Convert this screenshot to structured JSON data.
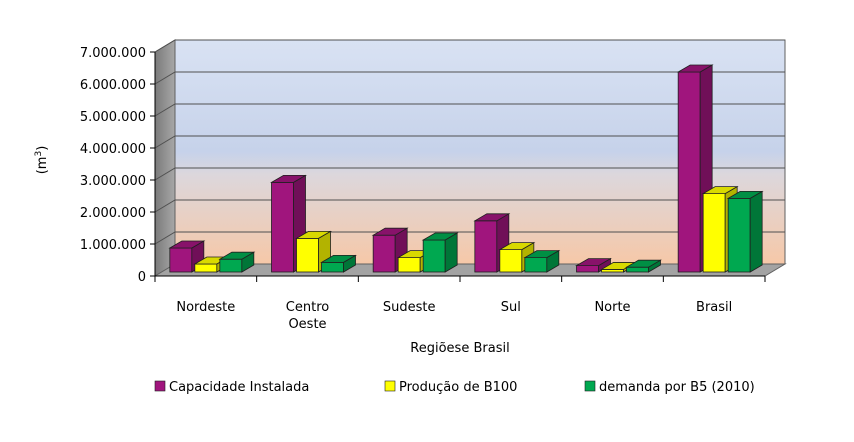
{
  "chart_data": {
    "type": "bar",
    "style": "3d-clustered-column",
    "categories": [
      "Nordeste",
      "Centro Oeste",
      "Sudeste",
      "Sul",
      "Norte",
      "Brasil"
    ],
    "category_lines": [
      [
        "Nordeste"
      ],
      [
        "Centro",
        "Oeste"
      ],
      [
        "Sudeste"
      ],
      [
        "Sul"
      ],
      [
        "Norte"
      ],
      [
        "Brasil"
      ]
    ],
    "series": [
      {
        "name": "Capacidade Instalada",
        "color": "#a0157d",
        "values": [
          750000,
          2800000,
          1150000,
          1600000,
          200000,
          6250000
        ]
      },
      {
        "name": "Produção de B100",
        "color": "#ffff00",
        "values": [
          250000,
          1050000,
          450000,
          700000,
          80000,
          2450000
        ]
      },
      {
        "name": "demanda por B5 (2010)",
        "color": "#00a850",
        "values": [
          400000,
          300000,
          1000000,
          450000,
          150000,
          2300000
        ]
      }
    ],
    "ylabel": "(m³)",
    "ylabel_parts": {
      "base": "(m",
      "sup": "3",
      "close": ")"
    },
    "xlabel": "Regiõese Brasil",
    "ylim": [
      0,
      7000000
    ],
    "yticks": [
      "0",
      "1.000.000",
      "2.000.000",
      "3.000.000",
      "4.000.000",
      "5.000.000",
      "6.000.000",
      "7.000.000"
    ],
    "grid": true,
    "legend_position": "bottom"
  }
}
